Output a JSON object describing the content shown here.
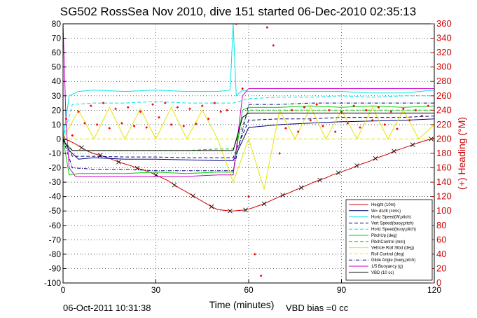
{
  "chart_data": {
    "type": "line",
    "title": "SG502 RossSea Nov 2010, dive 151 started 06-Dec-2010 02:35:13",
    "xlabel": "Time (minutes)",
    "ylabel": "",
    "ylabel_right": "(+) Heading (°M)",
    "xlim": [
      0,
      120
    ],
    "ylim": [
      -100,
      80
    ],
    "ylim_right": [
      0,
      360
    ],
    "xticks": [
      "0",
      "30",
      "60",
      "90",
      "120"
    ],
    "yticks": [
      "-100",
      "-90",
      "-80",
      "-70",
      "-60",
      "-50",
      "-40",
      "-30",
      "-20",
      "-10",
      "0",
      "10",
      "20",
      "30",
      "40",
      "50",
      "60",
      "70",
      "80"
    ],
    "yticks_right": [
      "0",
      "20",
      "40",
      "60",
      "80",
      "100",
      "120",
      "140",
      "160",
      "180",
      "200",
      "220",
      "240",
      "260",
      "280",
      "300",
      "320",
      "340",
      "360"
    ],
    "grid": true,
    "legend_position": "lower-right",
    "footer_left": "06-Oct-2011 10:31:38",
    "footer_right": "VBD bias =0 cc",
    "series": [
      {
        "name": "Height (10m)",
        "color": "#cc0000",
        "style": "solid",
        "marker": "x",
        "x": [
          0,
          2,
          4,
          6,
          8,
          10,
          12,
          14,
          16,
          18,
          20,
          22,
          24,
          26,
          28,
          30,
          32,
          34,
          36,
          38,
          40,
          42,
          44,
          46,
          48,
          50,
          52,
          54,
          55,
          57,
          59,
          61,
          63,
          65,
          67,
          69,
          71,
          73,
          75,
          77,
          79,
          81,
          83,
          85,
          87,
          89,
          91,
          93,
          95,
          97,
          99,
          101,
          103,
          105,
          107,
          109,
          111,
          113,
          115,
          117,
          119,
          120
        ],
        "y": [
          0,
          -1.2,
          -3.5,
          -6,
          -8.5,
          -10.2,
          -11.3,
          -12.7,
          -14.3,
          -16,
          -17.3,
          -18.6,
          -20.3,
          -21.5,
          -23,
          -25,
          -27,
          -29,
          -32,
          -34.5,
          -36.9,
          -39.5,
          -42,
          -44.5,
          -47,
          -49,
          -49.5,
          -50,
          -50,
          -49.6,
          -49.3,
          -48,
          -46.5,
          -45,
          -43,
          -41,
          -39,
          -37.5,
          -35.5,
          -33.8,
          -32,
          -30,
          -28.5,
          -27,
          -25,
          -23.5,
          -22,
          -20.5,
          -18.5,
          -17,
          -15.5,
          -13.5,
          -12,
          -10.5,
          -8.5,
          -7,
          -5.5,
          -4,
          -2.5,
          -1.2,
          0,
          0.5
        ]
      },
      {
        "name": "W= dz/dt (cm/s)",
        "color": "#000080",
        "style": "solid",
        "x": [
          0,
          2,
          5,
          10,
          20,
          30,
          40,
          50,
          55,
          60,
          70,
          80,
          90,
          100,
          110,
          120
        ],
        "y": [
          0,
          -8,
          -14,
          -13,
          -14,
          -14,
          -14.5,
          -15,
          -15,
          8,
          10,
          11,
          12,
          12.5,
          13,
          14
        ]
      },
      {
        "name": "Horiz Speed(W,pitch)",
        "color": "#00e5e5",
        "style": "solid",
        "x": [
          0,
          2,
          5,
          10,
          20,
          30,
          40,
          50,
          54,
          55,
          56,
          58,
          60,
          70,
          80,
          90,
          100,
          110,
          120
        ],
        "y": [
          0,
          30,
          33,
          34,
          33,
          34,
          33,
          33,
          34,
          80,
          30,
          34,
          33,
          33,
          33,
          33,
          32,
          32,
          34
        ]
      },
      {
        "name": "Vert Speed(buoy,pitch)",
        "color": "#000080",
        "style": "dashed",
        "x": [
          0,
          3,
          10,
          20,
          30,
          40,
          50,
          55,
          60,
          70,
          80,
          90,
          100,
          110,
          120
        ],
        "y": [
          0,
          -12,
          -12,
          -12.5,
          -12.5,
          -13,
          -13,
          -13,
          13,
          14,
          14,
          15,
          15,
          15,
          16
        ]
      },
      {
        "name": "Horiz Speed(buoy,pitch)",
        "color": "#00e5e5",
        "style": "dashed",
        "x": [
          0,
          3,
          10,
          20,
          30,
          40,
          50,
          55,
          60,
          70,
          80,
          90,
          100,
          110,
          120
        ],
        "y": [
          0,
          24,
          25,
          25,
          26,
          25,
          25,
          25,
          28,
          29,
          29,
          30,
          29,
          30,
          30
        ]
      },
      {
        "name": "PitchUp (deg)",
        "color": "#00cc00",
        "style": "solid",
        "x": [
          0,
          2,
          5,
          10,
          20,
          30,
          40,
          50,
          55,
          58,
          60,
          70,
          80,
          90,
          100,
          110,
          120
        ],
        "y": [
          0,
          -25,
          -24,
          -24,
          -24,
          -23,
          -24,
          -23,
          -23,
          20,
          22,
          22,
          23,
          22,
          23,
          22,
          23
        ]
      },
      {
        "name": "PitchControl (mm)",
        "color": "#00cc00",
        "style": "dashed",
        "x": [
          0,
          3,
          10,
          20,
          30,
          40,
          50,
          55,
          60,
          70,
          80,
          90,
          100,
          110,
          120
        ],
        "y": [
          0,
          -8,
          -8,
          -8,
          -8,
          -8,
          -7,
          -7,
          20,
          20,
          20,
          20,
          20,
          20,
          20
        ]
      },
      {
        "name": "Vehicle Roll Stbd (deg)",
        "color": "#e5e500",
        "style": "solid",
        "x": [
          0,
          5,
          10,
          15,
          20,
          25,
          30,
          35,
          40,
          45,
          50,
          55,
          60,
          65,
          70,
          75,
          80,
          85,
          90,
          95,
          100,
          105,
          110,
          115,
          120
        ],
        "y": [
          0,
          20,
          0,
          22,
          0,
          21,
          0,
          22,
          0,
          20,
          0,
          -30,
          0,
          -35,
          20,
          0,
          22,
          0,
          20,
          0,
          22,
          0,
          20,
          0,
          10
        ]
      },
      {
        "name": "Roll Control (deg)",
        "color": "#e5e500",
        "style": "dashed",
        "x": [
          0,
          10,
          20,
          30,
          40,
          50,
          55,
          60,
          70,
          80,
          90,
          100,
          110,
          120
        ],
        "y": [
          0,
          0,
          0,
          0,
          0,
          0,
          0,
          0,
          0,
          0,
          0,
          0,
          0,
          0
        ]
      },
      {
        "name": "Glide Angle (buoy,pitch)",
        "color": "#000080",
        "style": "dashdot",
        "x": [
          0,
          3,
          10,
          20,
          30,
          40,
          50,
          55,
          60,
          70,
          80,
          90,
          100,
          110,
          120
        ],
        "y": [
          0,
          -20,
          -21,
          -21,
          -22,
          -22,
          -22,
          -22,
          24,
          24,
          25,
          25,
          25,
          25,
          25
        ]
      },
      {
        "name": "1/5 Buoyancy (g)",
        "color": "#cc00cc",
        "style": "solid",
        "x": [
          0,
          1,
          2,
          4,
          10,
          20,
          30,
          40,
          50,
          55,
          58,
          60,
          70,
          80,
          90,
          100,
          110,
          120
        ],
        "y": [
          80,
          10,
          -20,
          -26,
          -26,
          -26,
          -26,
          -26,
          -25,
          -25,
          30,
          35,
          35,
          35,
          35,
          35,
          35,
          35
        ]
      },
      {
        "name": "VBD (10 cc)",
        "color": "#000000",
        "style": "solid",
        "x": [
          0,
          1,
          3,
          10,
          20,
          30,
          40,
          50,
          55,
          58,
          60,
          70,
          80,
          90,
          100,
          110,
          120
        ],
        "y": [
          0,
          -4,
          -8,
          -8,
          -8,
          -8,
          -8,
          -8,
          -8,
          15,
          18,
          18,
          18,
          18,
          18,
          18,
          18
        ]
      },
      {
        "name": "",
        "color": "#ff0000",
        "style": "dots",
        "axis": "right",
        "x": [
          1,
          3,
          5,
          7,
          9,
          11,
          13,
          15,
          17,
          19,
          21,
          23,
          25,
          27,
          29,
          31,
          33,
          35,
          37,
          39,
          41,
          43,
          45,
          47,
          49,
          51,
          53,
          56,
          58,
          60,
          62,
          64,
          66,
          68,
          70,
          72,
          74,
          76,
          78,
          80,
          82,
          84,
          86,
          88,
          90,
          92,
          94,
          96,
          98,
          100,
          102,
          104,
          106,
          108,
          110,
          112,
          114,
          116,
          118
        ],
        "y": [
          228,
          205,
          238,
          222,
          246,
          220,
          250,
          215,
          242,
          222,
          244,
          218,
          238,
          216,
          248,
          230,
          250,
          220,
          244,
          218,
          242,
          221,
          246,
          228,
          250,
          238,
          240,
          360,
          270,
          120,
          40,
          10,
          355,
          330,
          180,
          215,
          240,
          210,
          244,
          226,
          248,
          218,
          240,
          210,
          238,
          222,
          246,
          216,
          240,
          226,
          244,
          220,
          238,
          214,
          242,
          226,
          240,
          232,
          246
        ]
      }
    ]
  }
}
